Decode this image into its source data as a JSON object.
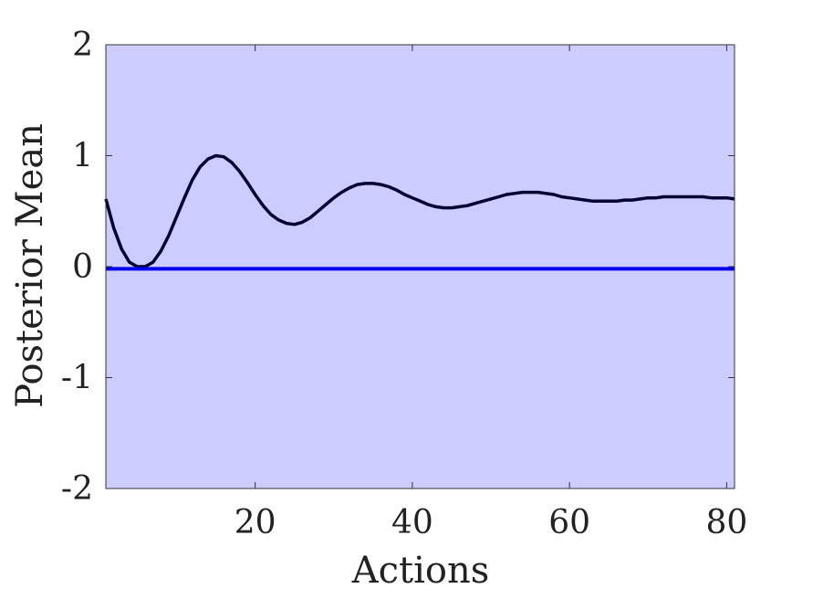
{
  "chart_data": {
    "type": "line",
    "title": "",
    "xlabel": "Actions",
    "ylabel": "Posterior Mean",
    "xlim": [
      1,
      81
    ],
    "ylim": [
      -2,
      2
    ],
    "x_ticks": [
      20,
      40,
      60,
      80
    ],
    "x_tick_labels": [
      "20",
      "40",
      "60",
      "80"
    ],
    "y_ticks": [
      -2,
      -1,
      0,
      1,
      2
    ],
    "y_tick_labels": [
      "-2",
      "-1",
      "0",
      "1",
      "2"
    ],
    "grid": false,
    "legend": "none",
    "background_color": "#ccccff",
    "series": [
      {
        "color": "#000033",
        "x": [
          1,
          2,
          3,
          4,
          5,
          6,
          7,
          8,
          9,
          10,
          11,
          12,
          13,
          14,
          15,
          16,
          17,
          18,
          19,
          20,
          21,
          22,
          23,
          24,
          25,
          26,
          27,
          28,
          29,
          30,
          31,
          32,
          33,
          34,
          35,
          36,
          37,
          38,
          39,
          40,
          41,
          42,
          43,
          44,
          45,
          46,
          47,
          48,
          49,
          50,
          51,
          52,
          53,
          54,
          55,
          56,
          57,
          58,
          59,
          60,
          61,
          62,
          63,
          64,
          65,
          66,
          67,
          68,
          69,
          70,
          71,
          72,
          73,
          74,
          75,
          76,
          77,
          78,
          79,
          80,
          81
        ],
        "y": [
          0.61,
          0.35,
          0.16,
          0.04,
          0.0,
          0.0,
          0.04,
          0.14,
          0.28,
          0.45,
          0.62,
          0.78,
          0.9,
          0.97,
          1.0,
          0.99,
          0.94,
          0.86,
          0.76,
          0.65,
          0.55,
          0.47,
          0.42,
          0.39,
          0.38,
          0.4,
          0.44,
          0.5,
          0.56,
          0.62,
          0.67,
          0.71,
          0.74,
          0.75,
          0.75,
          0.74,
          0.72,
          0.69,
          0.65,
          0.62,
          0.59,
          0.56,
          0.54,
          0.53,
          0.53,
          0.54,
          0.55,
          0.57,
          0.59,
          0.61,
          0.63,
          0.65,
          0.66,
          0.67,
          0.67,
          0.67,
          0.66,
          0.65,
          0.63,
          0.62,
          0.61,
          0.6,
          0.59,
          0.59,
          0.59,
          0.59,
          0.6,
          0.6,
          0.61,
          0.62,
          0.62,
          0.63,
          0.63,
          0.63,
          0.63,
          0.63,
          0.63,
          0.62,
          0.62,
          0.62,
          0.61
        ]
      },
      {
        "color": "#0000ee",
        "x": [
          1,
          81
        ],
        "y": [
          -0.02,
          -0.02
        ]
      }
    ]
  }
}
